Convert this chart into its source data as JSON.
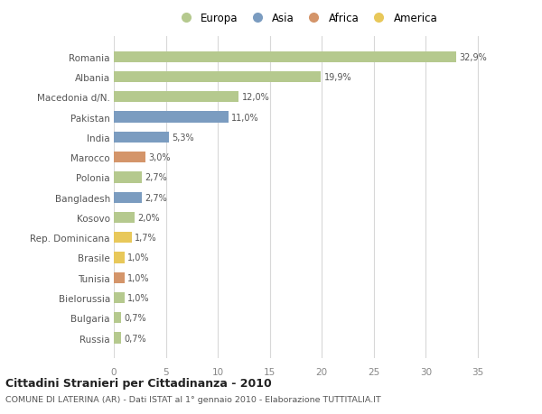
{
  "countries": [
    "Romania",
    "Albania",
    "Macedonia d/N.",
    "Pakistan",
    "India",
    "Marocco",
    "Polonia",
    "Bangladesh",
    "Kosovo",
    "Rep. Dominicana",
    "Brasile",
    "Tunisia",
    "Bielorussia",
    "Bulgaria",
    "Russia"
  ],
  "values": [
    32.9,
    19.9,
    12.0,
    11.0,
    5.3,
    3.0,
    2.7,
    2.7,
    2.0,
    1.7,
    1.0,
    1.0,
    1.0,
    0.7,
    0.7
  ],
  "labels": [
    "32,9%",
    "19,9%",
    "12,0%",
    "11,0%",
    "5,3%",
    "3,0%",
    "2,7%",
    "2,7%",
    "2,0%",
    "1,7%",
    "1,0%",
    "1,0%",
    "1,0%",
    "0,7%",
    "0,7%"
  ],
  "continents": [
    "Europa",
    "Europa",
    "Europa",
    "Asia",
    "Asia",
    "Africa",
    "Europa",
    "Asia",
    "Europa",
    "America",
    "America",
    "Africa",
    "Europa",
    "Europa",
    "Europa"
  ],
  "colors": {
    "Europa": "#b5c98e",
    "Asia": "#7b9cc0",
    "Africa": "#d4956a",
    "America": "#e8c85a"
  },
  "title": "Cittadini Stranieri per Cittadinanza - 2010",
  "subtitle": "COMUNE DI LATERINA (AR) - Dati ISTAT al 1° gennaio 2010 - Elaborazione TUTTITALIA.IT",
  "xlim": [
    0,
    37
  ],
  "xticks": [
    0,
    5,
    10,
    15,
    20,
    25,
    30,
    35
  ],
  "background_color": "#ffffff",
  "grid_color": "#d8d8d8",
  "bar_height": 0.55,
  "legend_order": [
    "Europa",
    "Asia",
    "Africa",
    "America"
  ]
}
